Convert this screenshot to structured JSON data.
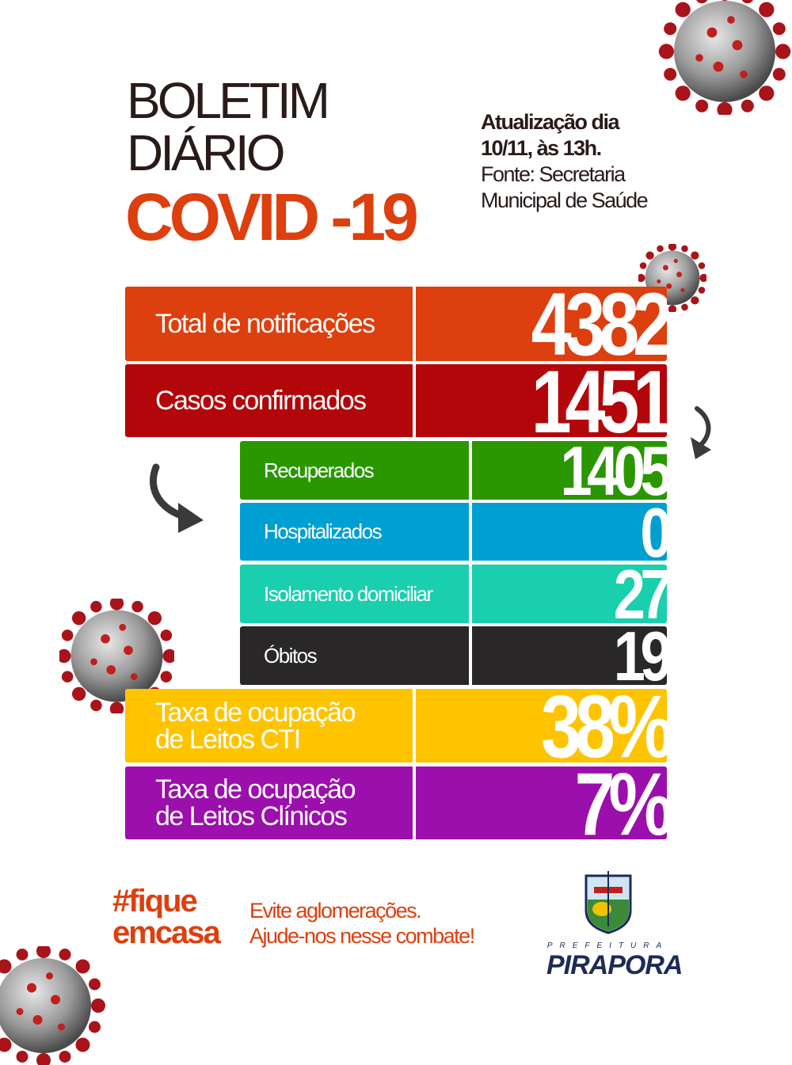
{
  "header": {
    "line1": "BOLETIM",
    "line2": "DIÁRIO",
    "line3": "COVID -19"
  },
  "update": {
    "line1": "Atualização dia",
    "line2": "10/11, às 13h.",
    "line3": "Fonte: Secretaria",
    "line4": "Municipal de Saúde"
  },
  "stats": [
    {
      "label": "Total de notificações",
      "value": "4382",
      "color": "#dd3f0e"
    },
    {
      "label": "Casos confirmados",
      "value": "1451",
      "color": "#b3060a"
    },
    {
      "label": "Recuperados",
      "value": "1405",
      "color": "#2a9600"
    },
    {
      "label": "Hospitalizados",
      "value": "0",
      "color": "#009fd2"
    },
    {
      "label": "Isolamento domiciliar",
      "value": "27",
      "color": "#19cfae"
    },
    {
      "label": "Óbitos",
      "value": "19",
      "color": "#2a2728"
    },
    {
      "label": "Taxa de ocupação",
      "label2": "de Leitos CTI",
      "value": "38%",
      "color": "#ffc400"
    },
    {
      "label": "Taxa de ocupação",
      "label2": "de Leitos Clínicos",
      "value": "7%",
      "color": "#9b0fac"
    }
  ],
  "footer": {
    "hashtag1": "#fique",
    "hashtag2": "emcasa",
    "msg1": "Evite aglomerações.",
    "msg2": "Ajude-nos nesse combate!"
  },
  "logo": {
    "prefix": "PREFEITURA",
    "name": "PIRAPORA"
  },
  "icons": [
    "virus-icon",
    "curved-arrow-icon",
    "coat-of-arms-icon"
  ]
}
